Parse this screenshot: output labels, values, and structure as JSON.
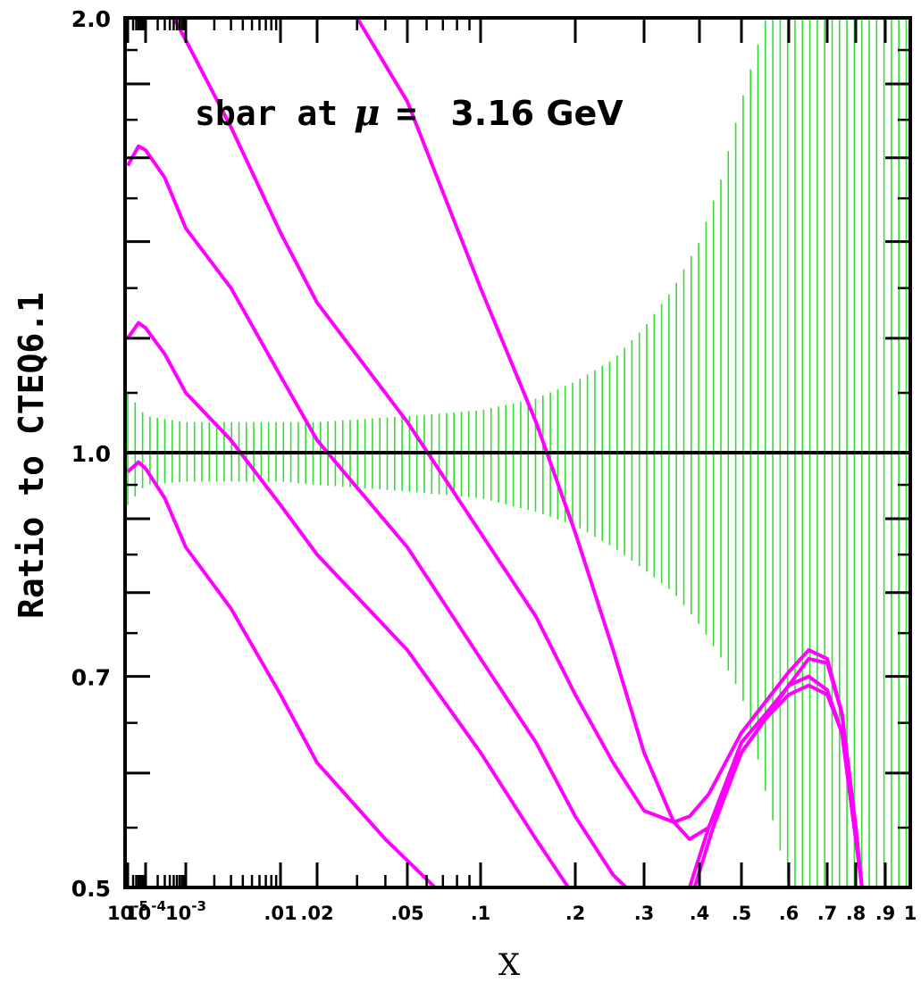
{
  "chart_data": {
    "type": "line",
    "title_parts": {
      "prefix": "sbar at",
      "symbol": "μ",
      "equals": "=",
      "value": "3.16 GeV"
    },
    "xlabel": "X",
    "ylabel": "Ratio to CTEQ6.1",
    "x_scale": "custom-log (log at small x, stretched at large x)",
    "y_scale": "log",
    "xlim": [
      1e-05,
      1
    ],
    "ylim": [
      0.5,
      2.0
    ],
    "x_ticks": [
      {
        "value": 1e-05,
        "label": "10",
        "exp": "-5"
      },
      {
        "value": 0.0001,
        "label": "10",
        "exp": "-4"
      },
      {
        "value": 0.001,
        "label": "10",
        "exp": "-3"
      },
      {
        "value": 0.01,
        "label": ".01"
      },
      {
        "value": 0.02,
        "label": ".02"
      },
      {
        "value": 0.05,
        "label": ".05"
      },
      {
        "value": 0.1,
        "label": ".1"
      },
      {
        "value": 0.2,
        "label": ".2"
      },
      {
        "value": 0.3,
        "label": ".3"
      },
      {
        "value": 0.4,
        "label": ".4"
      },
      {
        "value": 0.5,
        "label": ".5"
      },
      {
        "value": 0.6,
        "label": ".6"
      },
      {
        "value": 0.7,
        "label": ".7"
      },
      {
        "value": 0.8,
        "label": ".8"
      },
      {
        "value": 0.9,
        "label": ".9"
      },
      {
        "value": 1.0,
        "label": "1"
      }
    ],
    "y_ticks": [
      {
        "value": 0.5,
        "label": "0.5"
      },
      {
        "value": 0.7,
        "label": "0.7"
      },
      {
        "value": 1.0,
        "label": "1.0"
      },
      {
        "value": 2.0,
        "label": "2.0"
      }
    ],
    "reference_line": 1.0,
    "uncertainty_band": {
      "color": "#33dd33",
      "x": [
        1e-05,
        0.0001,
        0.001,
        0.01,
        0.02,
        0.05,
        0.1,
        0.15,
        0.2,
        0.25,
        0.3,
        0.35,
        0.4,
        0.45,
        0.5,
        0.55,
        0.6,
        0.65,
        0.7,
        0.75,
        0.8,
        0.85,
        0.9,
        0.95,
        1.0
      ],
      "upper": [
        1.1,
        1.06,
        1.05,
        1.05,
        1.05,
        1.06,
        1.07,
        1.09,
        1.12,
        1.16,
        1.22,
        1.3,
        1.4,
        1.55,
        1.75,
        2.0,
        2.0,
        2.0,
        2.0,
        2.0,
        2.0,
        2.0,
        2.0,
        2.0,
        2.0
      ],
      "lower": [
        0.92,
        0.95,
        0.955,
        0.955,
        0.95,
        0.94,
        0.93,
        0.91,
        0.89,
        0.86,
        0.83,
        0.8,
        0.76,
        0.72,
        0.68,
        0.58,
        0.5,
        0.5,
        0.5,
        0.5,
        0.5,
        0.5,
        0.5,
        0.5,
        0.5
      ]
    },
    "series": [
      {
        "color": "#ff00ff",
        "x": [
          1e-05,
          4e-05,
          0.0001,
          0.0003,
          0.001,
          0.003,
          0.01,
          0.02,
          0.04,
          0.065
        ],
        "y": [
          0.97,
          0.985,
          0.975,
          0.93,
          0.86,
          0.78,
          0.68,
          0.61,
          0.54,
          0.5
        ]
      },
      {
        "color": "#ff00ff",
        "x": [
          1e-05,
          4e-05,
          0.0001,
          0.0003,
          0.001,
          0.003,
          0.01,
          0.02,
          0.05,
          0.1,
          0.15,
          0.19
        ],
        "y": [
          1.2,
          1.23,
          1.22,
          1.17,
          1.1,
          1.02,
          0.92,
          0.85,
          0.73,
          0.62,
          0.54,
          0.5
        ]
      },
      {
        "color": "#ff00ff",
        "x": [
          1e-05,
          4e-05,
          0.0001,
          0.0003,
          0.001,
          0.003,
          0.01,
          0.02,
          0.05,
          0.1,
          0.15,
          0.2,
          0.25,
          0.27
        ],
        "y": [
          1.58,
          1.63,
          1.62,
          1.55,
          1.43,
          1.3,
          1.13,
          1.02,
          0.86,
          0.72,
          0.63,
          0.56,
          0.51,
          0.5
        ]
      },
      {
        "color": "#ff00ff",
        "x": [
          0.0005,
          0.001,
          0.003,
          0.01,
          0.02,
          0.05,
          0.1,
          0.15,
          0.2,
          0.25,
          0.3,
          0.35,
          0.38,
          0.42,
          0.5,
          0.6,
          0.65,
          0.7,
          0.75,
          0.8,
          0.82
        ],
        "y": [
          2.0,
          1.93,
          1.68,
          1.42,
          1.27,
          1.05,
          0.88,
          0.77,
          0.68,
          0.61,
          0.565,
          0.555,
          0.56,
          0.58,
          0.64,
          0.705,
          0.73,
          0.72,
          0.66,
          0.55,
          0.5
        ]
      },
      {
        "color": "#ff00ff",
        "x": [
          0.03,
          0.05,
          0.1,
          0.15,
          0.2,
          0.25,
          0.3,
          0.35,
          0.38,
          0.42,
          0.5,
          0.6,
          0.65,
          0.7,
          0.75,
          0.8,
          0.82
        ],
        "y": [
          2.0,
          1.75,
          1.3,
          1.05,
          0.88,
          0.73,
          0.62,
          0.555,
          0.54,
          0.55,
          0.62,
          0.69,
          0.72,
          0.715,
          0.66,
          0.55,
          0.5
        ]
      },
      {
        "color": "#ff00ff",
        "x": [
          0.38,
          0.42,
          0.5,
          0.55,
          0.6,
          0.65,
          0.7,
          0.75,
          0.8,
          0.82
        ],
        "y": [
          0.5,
          0.55,
          0.63,
          0.66,
          0.69,
          0.7,
          0.685,
          0.64,
          0.54,
          0.5
        ]
      },
      {
        "color": "#ff00ff",
        "x": [
          0.39,
          0.43,
          0.5,
          0.55,
          0.6,
          0.65,
          0.7,
          0.75,
          0.8,
          0.82
        ],
        "y": [
          0.5,
          0.55,
          0.62,
          0.655,
          0.68,
          0.69,
          0.68,
          0.64,
          0.54,
          0.5
        ]
      }
    ],
    "colors": {
      "band": "#33dd33",
      "curves": "#ff00ff",
      "axes": "#000000"
    },
    "grid": false,
    "legend": "none"
  }
}
